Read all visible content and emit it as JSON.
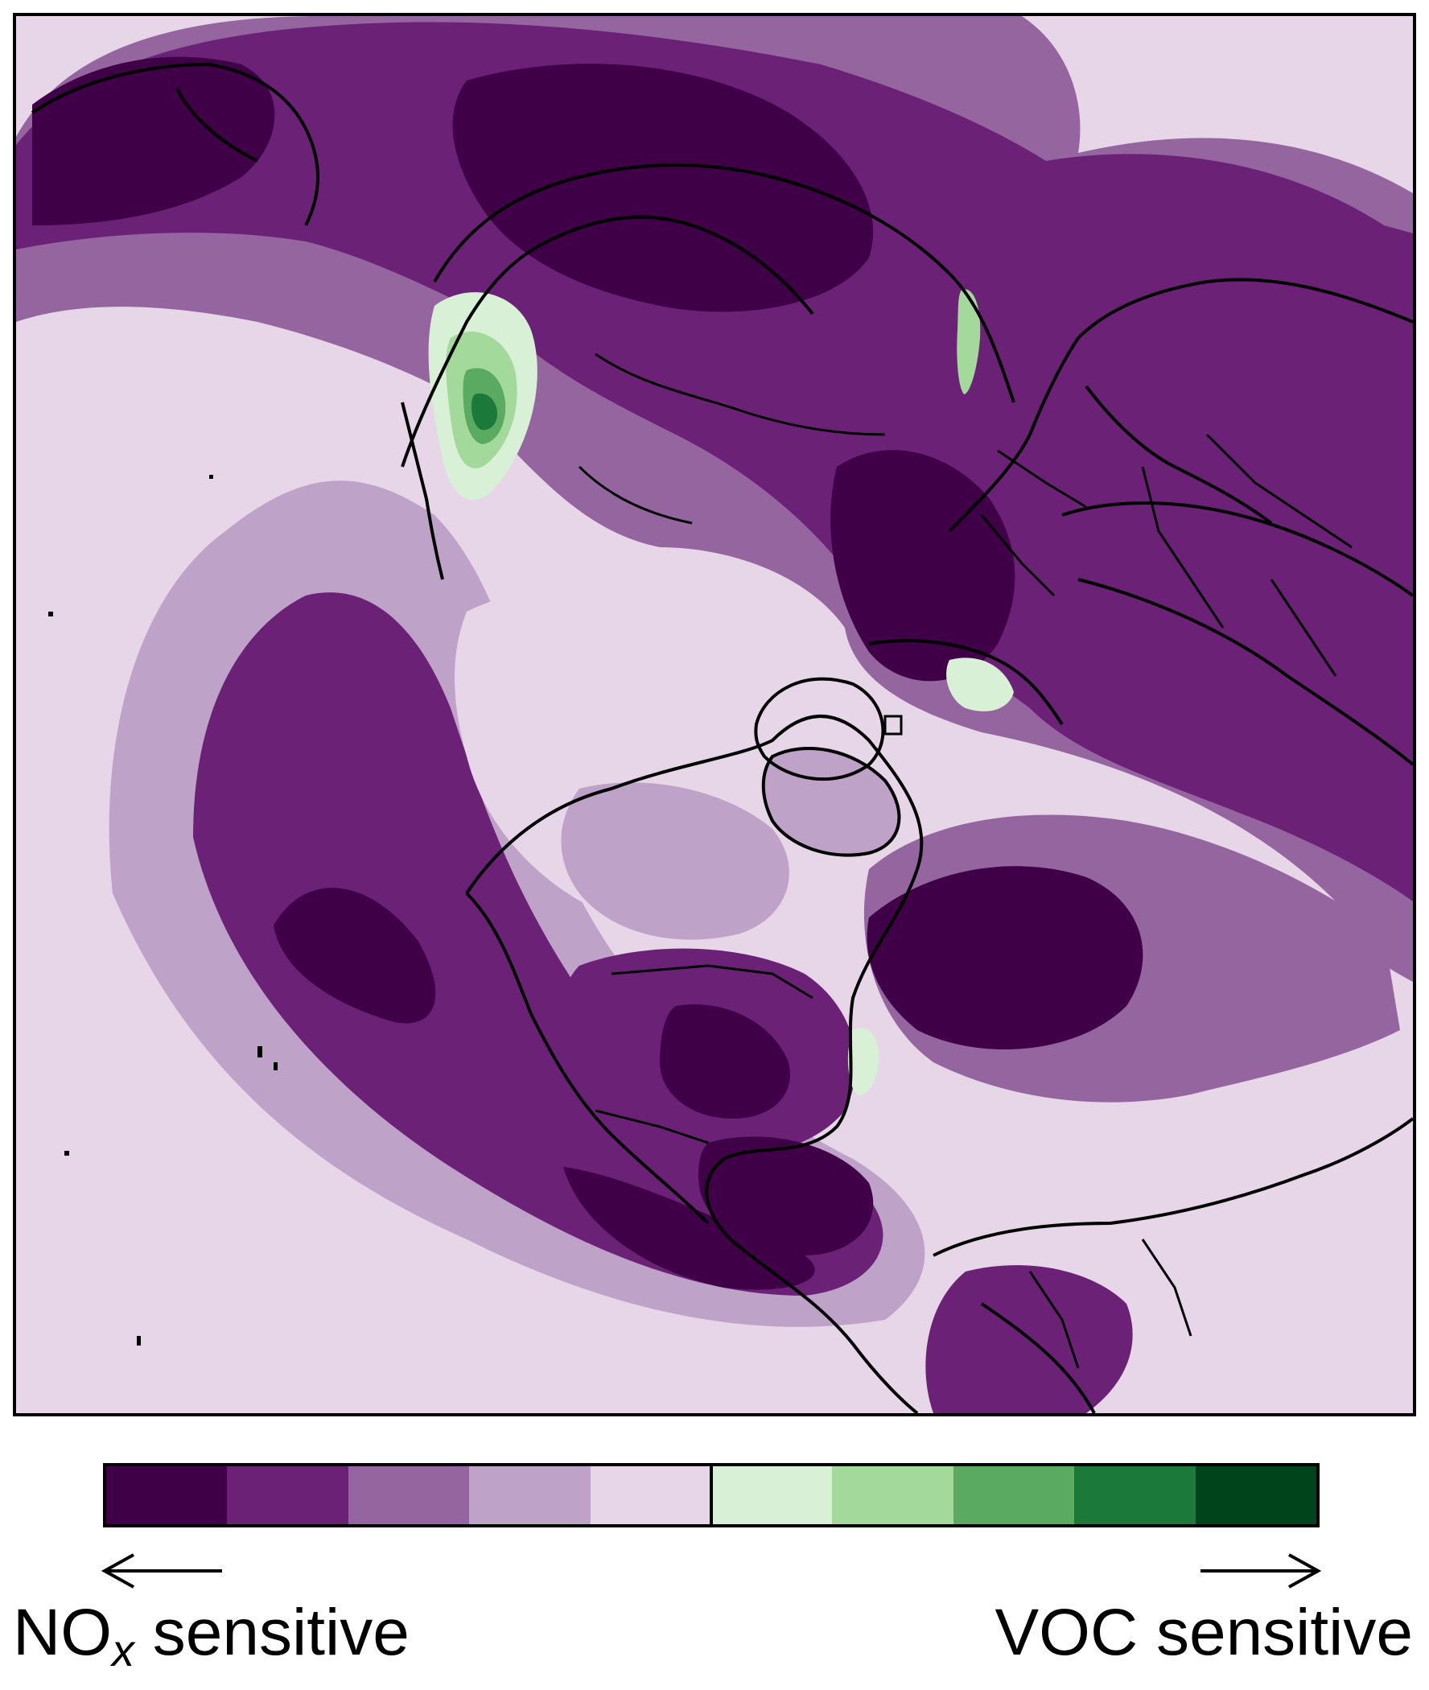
{
  "map": {
    "colors": {
      "c1": "#3f0047",
      "c2": "#6b2175",
      "c3": "#94659f",
      "c4": "#bea2c8",
      "c5": "#e6d6e7",
      "g1": "#d8f0d6",
      "g2": "#a4d99c",
      "g3": "#5aab61",
      "g4": "#1b7a39",
      "g5": "#00441b",
      "outline": "#000000"
    }
  },
  "colorbar": {
    "colors": [
      "#3f0047",
      "#6b2175",
      "#94659f",
      "#bea2c8",
      "#e6d6e7",
      "#d8f0d6",
      "#a4d99c",
      "#5aab61",
      "#1b7a39",
      "#00441b"
    ]
  },
  "labels": {
    "nox_main": "NO",
    "nox_sub": "x",
    "nox_rest": " sensitive",
    "voc": "VOC sensitive"
  }
}
